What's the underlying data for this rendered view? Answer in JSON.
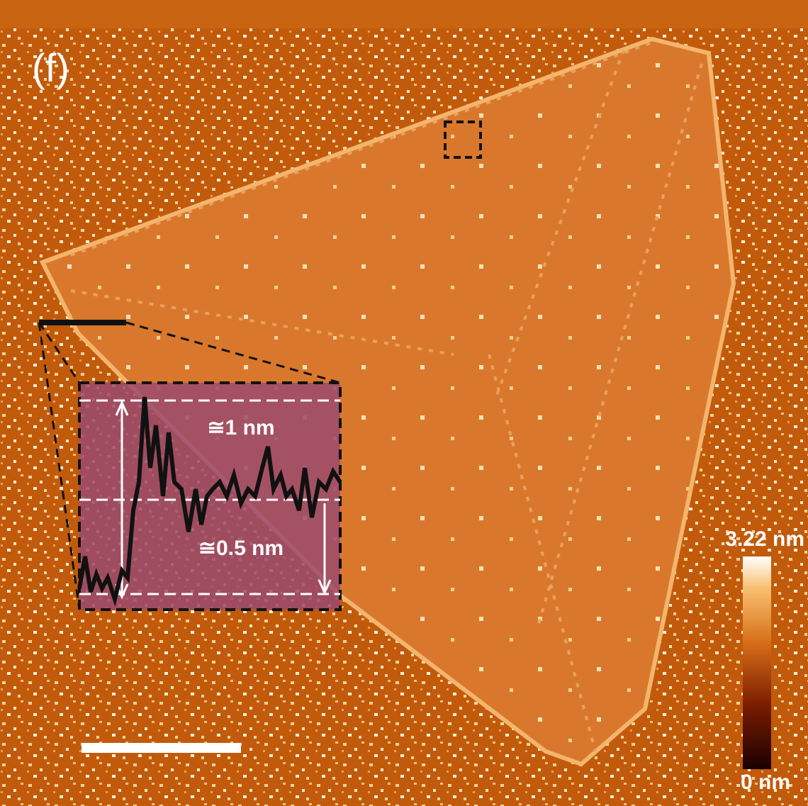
{
  "panel_label": "(f)",
  "inset": {
    "upper_label": "≅1 nm",
    "lower_label": "≅0.5 nm"
  },
  "colorbar": {
    "max_label": "3.22 nm",
    "min_label": "0 nm"
  }
}
